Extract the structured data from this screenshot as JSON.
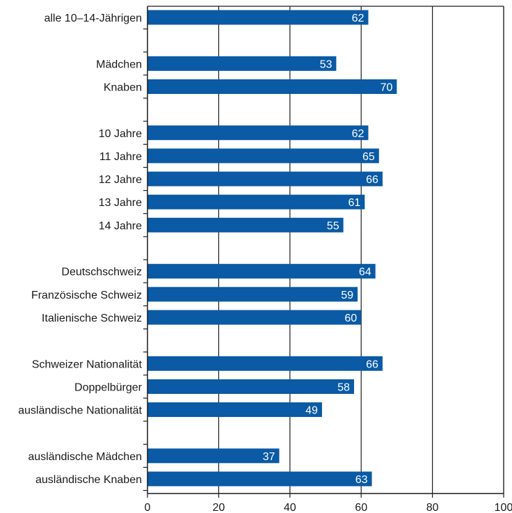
{
  "chart_data": {
    "type": "bar",
    "orientation": "horizontal",
    "title": "",
    "xlabel": "",
    "ylabel": "",
    "xlim": [
      0,
      100
    ],
    "x_ticks": [
      "0",
      "20",
      "40",
      "60",
      "80",
      "100"
    ],
    "grid": true,
    "rows": [
      {
        "category": "alle 10–14-Jährigen",
        "value": 62,
        "value_label": "62"
      },
      {
        "category": "",
        "value": null,
        "value_label": ""
      },
      {
        "category": "Mädchen",
        "value": 53,
        "value_label": "53"
      },
      {
        "category": "Knaben",
        "value": 70,
        "value_label": "70"
      },
      {
        "category": "",
        "value": null,
        "value_label": ""
      },
      {
        "category": "10 Jahre",
        "value": 62,
        "value_label": "62"
      },
      {
        "category": "11 Jahre",
        "value": 65,
        "value_label": "65"
      },
      {
        "category": "12 Jahre",
        "value": 66,
        "value_label": "66"
      },
      {
        "category": "13 Jahre",
        "value": 61,
        "value_label": "61"
      },
      {
        "category": "14 Jahre",
        "value": 55,
        "value_label": "55"
      },
      {
        "category": "",
        "value": null,
        "value_label": ""
      },
      {
        "category": "Deutschschweiz",
        "value": 64,
        "value_label": "64"
      },
      {
        "category": "Französische Schweiz",
        "value": 59,
        "value_label": "59"
      },
      {
        "category": "Italienische Schweiz",
        "value": 60,
        "value_label": "60"
      },
      {
        "category": "",
        "value": null,
        "value_label": ""
      },
      {
        "category": "Schweizer Nationalität",
        "value": 66,
        "value_label": "66"
      },
      {
        "category": "Doppelbürger",
        "value": 58,
        "value_label": "58"
      },
      {
        "category": "ausländische Nationalität",
        "value": 49,
        "value_label": "49"
      },
      {
        "category": "",
        "value": null,
        "value_label": ""
      },
      {
        "category": "ausländische Mädchen",
        "value": 37,
        "value_label": "37"
      },
      {
        "category": "ausländische Knaben",
        "value": 63,
        "value_label": "63"
      }
    ],
    "colors": {
      "bar": "#0a5aa5",
      "bar_text": "#ffffff",
      "axis": "#1a1a1a",
      "grid": "#1a1a1a"
    }
  }
}
